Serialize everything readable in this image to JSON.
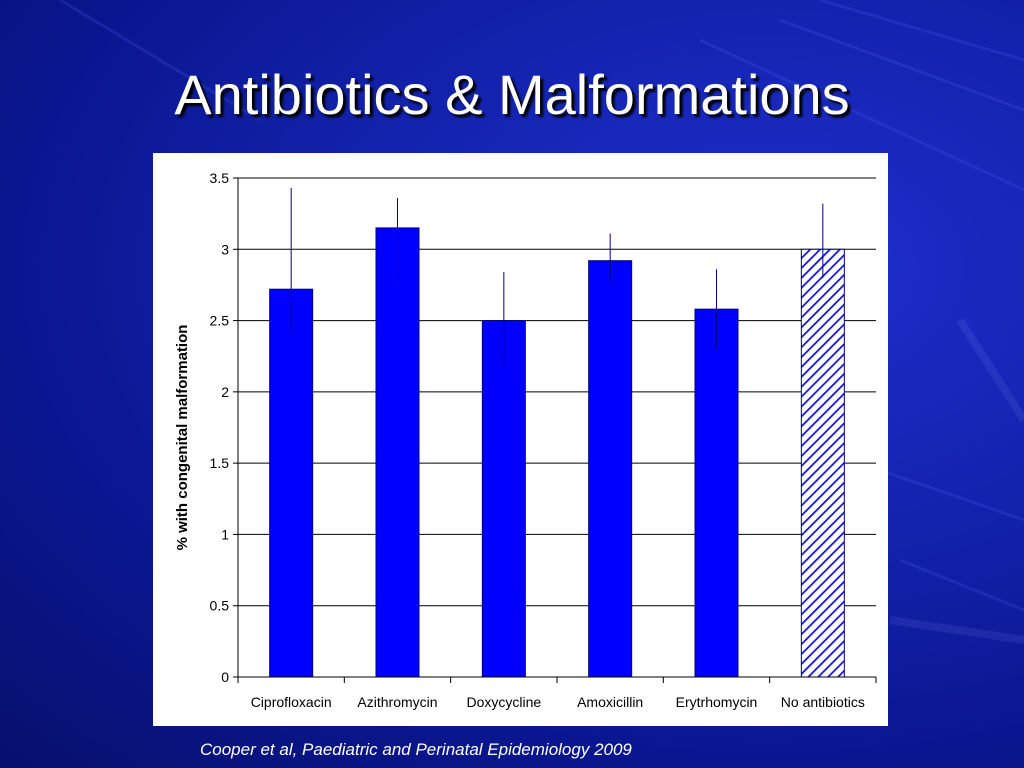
{
  "slide": {
    "title": "Antibiotics & Malformations",
    "caption": "Cooper et al, Paediatric and Perinatal Epidemiology 2009"
  },
  "colors": {
    "background": "#1020b0",
    "bar_fill": "#0000ff",
    "bar_stroke": "#000080",
    "error_bar": "#000080",
    "hatch_stroke": "#1010e0"
  },
  "chart_data": {
    "type": "bar",
    "title": "",
    "xlabel": "",
    "ylabel": "% with congenital malformation",
    "categories": [
      "Ciprofloxacin",
      "Azithromycin",
      "Doxycycline",
      "Amoxicillin",
      "Erytrhomycin",
      "No antibiotics"
    ],
    "values": [
      2.72,
      3.15,
      2.5,
      2.92,
      2.58,
      3.0
    ],
    "error_low": [
      2.43,
      2.77,
      2.18,
      2.77,
      2.3,
      2.8
    ],
    "error_high": [
      3.43,
      3.36,
      2.84,
      3.11,
      2.86,
      3.32
    ],
    "pattern": [
      "solid",
      "solid",
      "solid",
      "solid",
      "solid",
      "hatched"
    ],
    "ylim": [
      0,
      3.5
    ],
    "yticks": [
      "0",
      "0.5",
      "1",
      "1.5",
      "2",
      "2.5",
      "3",
      "3.5"
    ],
    "grid": true,
    "legend": "none"
  }
}
